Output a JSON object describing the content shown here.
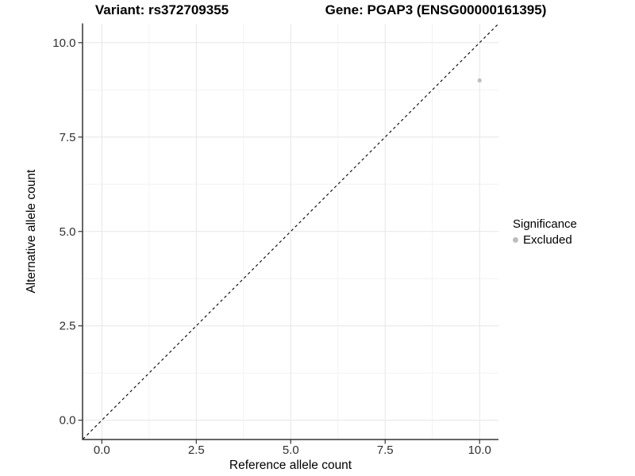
{
  "figure": {
    "title_left": "Variant: rs372709355",
    "title_right": "Gene: PGAP3 (ENSG00000161395)"
  },
  "chart_data": {
    "type": "scatter",
    "title_left": "Variant: rs372709355",
    "title_right": "Gene: PGAP3 (ENSG00000161395)",
    "xlabel": "Reference allele count",
    "ylabel": "Alternative allele count",
    "xlim": [
      -0.5,
      10.5
    ],
    "ylim": [
      -0.5,
      10.5
    ],
    "x_ticks": [
      0,
      2.5,
      5,
      7.5,
      10
    ],
    "x_tick_labels": [
      "0.0",
      "2.5",
      "5.0",
      "7.5",
      "10.0"
    ],
    "y_ticks": [
      0,
      2.5,
      5,
      7.5,
      10
    ],
    "y_tick_labels": [
      "0.0",
      "2.5",
      "5.0",
      "7.5",
      "10.0"
    ],
    "grid": {
      "major": true,
      "minor": true,
      "major_color": "#e6e6e6",
      "minor_color": "#f2f2f2"
    },
    "reference_line": {
      "type": "identity",
      "slope": 1,
      "intercept": 0,
      "style": "dashed",
      "color": "#000000"
    },
    "series": [
      {
        "name": "Excluded",
        "color": "#bebebe",
        "points": [
          [
            10,
            9
          ]
        ]
      }
    ],
    "legend": {
      "title": "Significance",
      "position": "right",
      "items": [
        {
          "label": "Excluded",
          "color": "#bebebe"
        }
      ]
    },
    "axis_color": "#333333",
    "background": "#ffffff"
  }
}
